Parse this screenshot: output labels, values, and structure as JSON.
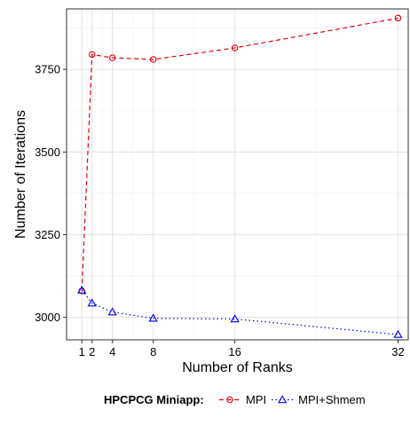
{
  "chart_data": {
    "type": "line",
    "xlabel": "Number of Ranks",
    "ylabel": "Number of Iterations",
    "x": [
      1,
      2,
      4,
      8,
      16,
      32
    ],
    "x_tick_labels": [
      "1",
      "2",
      "4",
      "8",
      "16",
      "32"
    ],
    "xlim": [
      -0.5,
      33
    ],
    "y_ticks": [
      3000,
      3250,
      3500,
      3750
    ],
    "y_tick_labels": [
      "3000",
      "3250",
      "3500",
      "3750"
    ],
    "ylim": [
      2932,
      3933
    ],
    "grid": true,
    "legend_position": "bottom",
    "legend_title": "HPCPCG Miniapp:",
    "series": [
      {
        "name": "MPI",
        "values": [
          3080,
          3795,
          3785,
          3780,
          3815,
          3905
        ],
        "color": "#e8000b",
        "marker": "circle",
        "line": "dashed"
      },
      {
        "name": "MPI+Shmem",
        "values": [
          3082,
          3043,
          3016,
          2997,
          2995,
          2948
        ],
        "color": "#0000ee",
        "marker": "triangle",
        "line": "dotted"
      }
    ],
    "colors": {
      "grid": "#e6e6e6",
      "frame": "#333333"
    }
  }
}
